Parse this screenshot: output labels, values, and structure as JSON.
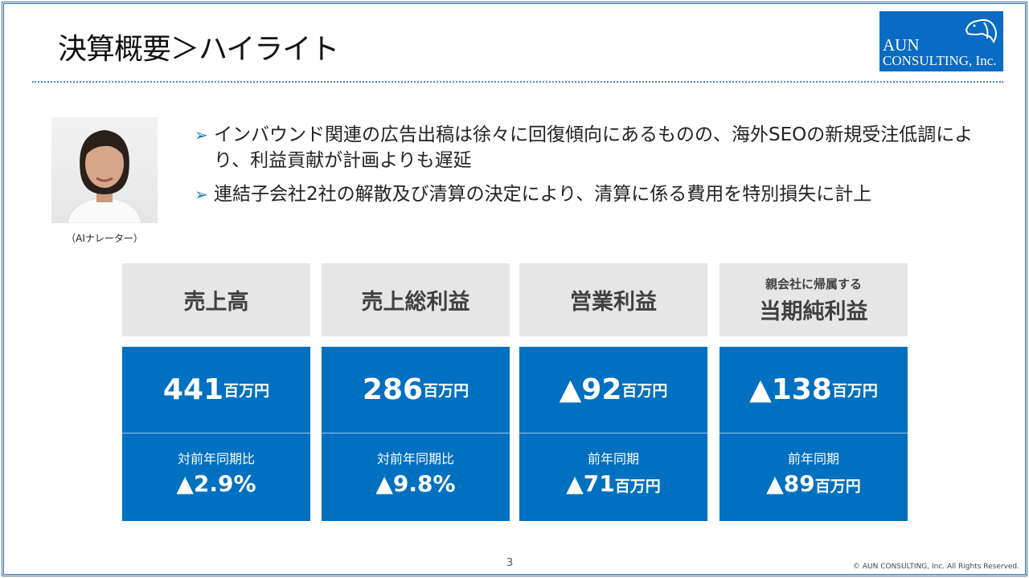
{
  "title": "決算概要＞ハイライト",
  "logo": {
    "line1": "AUN",
    "line2": "CONSULTING, Inc."
  },
  "narrator_caption": "（AIナレーター）",
  "bullets": [
    "インバウンド関連の広告出稿は徐々に回復傾向にあるものの、海外SEOの新規受注低調により、利益貢献が計画よりも遅延",
    "連結子会社2社の解散及び清算の決定により、清算に係る費用を特別損失に計上"
  ],
  "cards": [
    {
      "pre": "",
      "title": "売上高",
      "value": "441",
      "unit": "百万円",
      "sub_label": "対前年同期比",
      "sub_value": "▲2.9%",
      "sub_unit": ""
    },
    {
      "pre": "",
      "title": "売上総利益",
      "value": "286",
      "unit": "百万円",
      "sub_label": "対前年同期比",
      "sub_value": "▲9.8%",
      "sub_unit": ""
    },
    {
      "pre": "",
      "title": "営業利益",
      "value": "▲92",
      "unit": "百万円",
      "sub_label": "前年同期",
      "sub_value": "▲71",
      "sub_unit": "百万円"
    },
    {
      "pre": "親会社に帰属する",
      "title": "当期純利益",
      "value": "▲138",
      "unit": "百万円",
      "sub_label": "前年同期",
      "sub_value": "▲89",
      "sub_unit": "百万円"
    }
  ],
  "page_number": "3",
  "copyright": "© AUN CONSULTING, Inc. All Rights Reserved.",
  "colors": {
    "accent": "#0070c0",
    "header_gray": "#e6e6e6"
  }
}
